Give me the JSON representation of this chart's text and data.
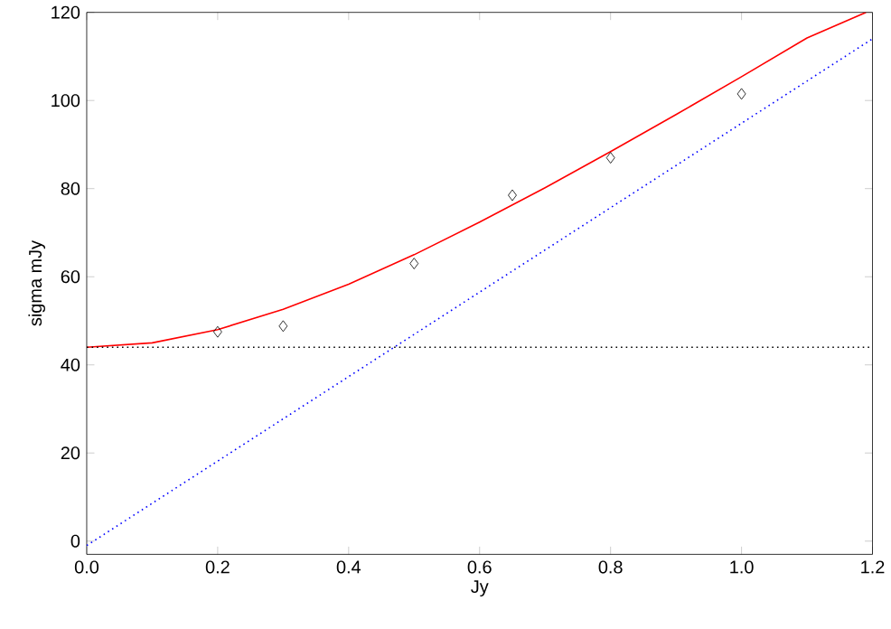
{
  "chart_data": {
    "type": "line",
    "xlabel": "Jy",
    "ylabel": "sigma  mJy",
    "xlim": [
      0,
      1.2
    ],
    "ylim": [
      -3,
      120
    ],
    "xticks": [
      {
        "value": 0,
        "label": "0.0"
      },
      {
        "value": 0.2,
        "label": "0.2"
      },
      {
        "value": 0.4,
        "label": "0.4"
      },
      {
        "value": 0.6,
        "label": "0.6"
      },
      {
        "value": 0.8,
        "label": "0.8"
      },
      {
        "value": 1.0,
        "label": "1.0"
      },
      {
        "value": 1.2,
        "label": "1.2"
      }
    ],
    "yticks": [
      0,
      20,
      40,
      60,
      80,
      100,
      120
    ],
    "series": [
      {
        "color": "#ff0000",
        "line_style": "solid",
        "x": [
          0,
          0.1,
          0.2,
          0.3,
          0.4,
          0.5,
          0.6,
          0.7,
          0.8,
          0.9,
          1.0,
          1.1,
          1.19
        ],
        "values": [
          44,
          45,
          48,
          52.6,
          58.3,
          65,
          72.4,
          80.2,
          88.4,
          96.8,
          105.4,
          114.2,
          120
        ]
      },
      {
        "type": "line",
        "color": "#0000ff",
        "line_style": "dotted",
        "x": [
          0,
          1.2
        ],
        "values": [
          -1,
          114
        ]
      },
      {
        "type": "scatter",
        "color": "#000000",
        "marker": "diamond",
        "x": [
          0.2,
          0.3,
          0.5,
          0.65,
          0.8,
          1.0
        ],
        "values": [
          47.5,
          48.8,
          63,
          78.5,
          87,
          101.5
        ]
      }
    ],
    "ref_lines": [
      {
        "axis": "y",
        "value": 44,
        "color": "#000000",
        "line_style": "dotted"
      }
    ]
  }
}
